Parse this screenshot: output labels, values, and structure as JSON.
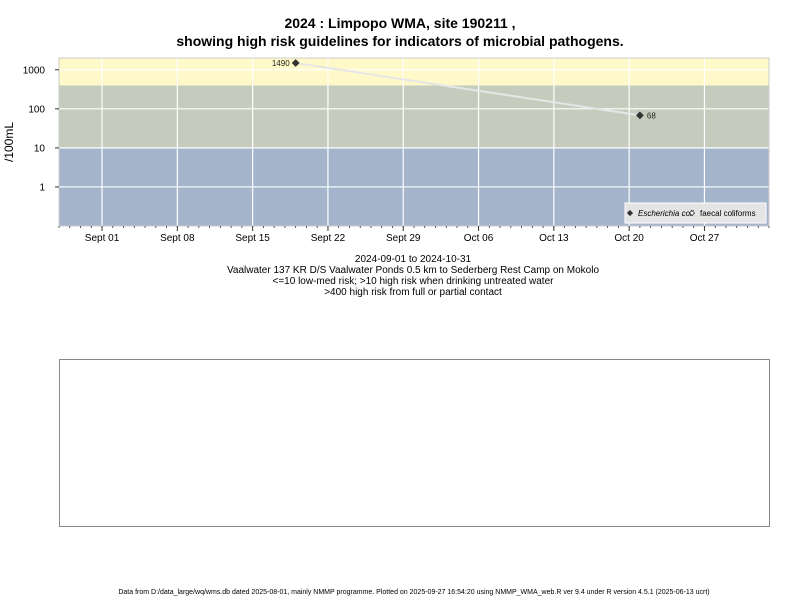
{
  "header": {
    "title_line1": "2024 : Limpopo WMA, site 190211 ,",
    "title_line2": "showing high risk guidelines for indicators of microbial pathogens."
  },
  "subtitle": {
    "date_range": "2024-09-01 to 2024-10-31",
    "site_description": "Vaalwater 137 KR D/S Vaalwater Ponds 0.5 km to Sederberg Rest Camp on Mokolo",
    "risk_note_1": "<=10 low-med risk; >10 high risk when drinking untreated water",
    "risk_note_2": ">400 high risk from full or partial contact"
  },
  "footer": {
    "text": "Data from D:/data_large/wq/wms.db dated 2025-08-01, mainly NMMP programme. Plotted on 2025-09-27 16:54:20 using NMMP_WMA_web.R ver 9.4 under R version 4.5.1 (2025-06-13 ucrt)"
  },
  "colors": {
    "band_high_contact": "#fff8c8",
    "band_high_drinking": "#c6ccbd",
    "band_low": "#a3b4cb",
    "grid": "#ffffff",
    "line": "#e6e6e6",
    "point": "#333333"
  },
  "chart_data": {
    "type": "line",
    "ylabel": "/100mL",
    "yscale": "log",
    "ylim": [
      0.1,
      2000
    ],
    "y_ticks": [
      {
        "value": 1,
        "label": "1"
      },
      {
        "value": 10,
        "label": "10"
      },
      {
        "value": 100,
        "label": "100"
      },
      {
        "value": 1000,
        "label": "1000"
      }
    ],
    "x_range": [
      "2024-08-28",
      "2024-11-02"
    ],
    "x_ticks": [
      {
        "date": "2024-09-01",
        "label": "Sept 01"
      },
      {
        "date": "2024-09-08",
        "label": "Sept 08"
      },
      {
        "date": "2024-09-15",
        "label": "Sept 15"
      },
      {
        "date": "2024-09-22",
        "label": "Sept 22"
      },
      {
        "date": "2024-09-29",
        "label": "Sept 29"
      },
      {
        "date": "2024-10-06",
        "label": "Oct 06"
      },
      {
        "date": "2024-10-13",
        "label": "Oct 13"
      },
      {
        "date": "2024-10-20",
        "label": "Oct 20"
      },
      {
        "date": "2024-10-27",
        "label": "Oct 27"
      }
    ],
    "bands": [
      {
        "from": 0.1,
        "to": 10,
        "color_key": "band_low"
      },
      {
        "from": 10,
        "to": 400,
        "color_key": "band_high_drinking"
      },
      {
        "from": 400,
        "to": 2000,
        "color_key": "band_high_contact"
      }
    ],
    "series": [
      {
        "name": "Escherichia coli",
        "marker": "filled-diamond",
        "points": [
          {
            "date": "2024-09-19",
            "value": 1490,
            "label": "1490"
          },
          {
            "date": "2024-10-21",
            "value": 68,
            "label": "68"
          }
        ]
      },
      {
        "name": "faecal coliforms",
        "marker": "open-diamond",
        "points": []
      }
    ],
    "legend_position": "bottom-right",
    "grid": true
  }
}
